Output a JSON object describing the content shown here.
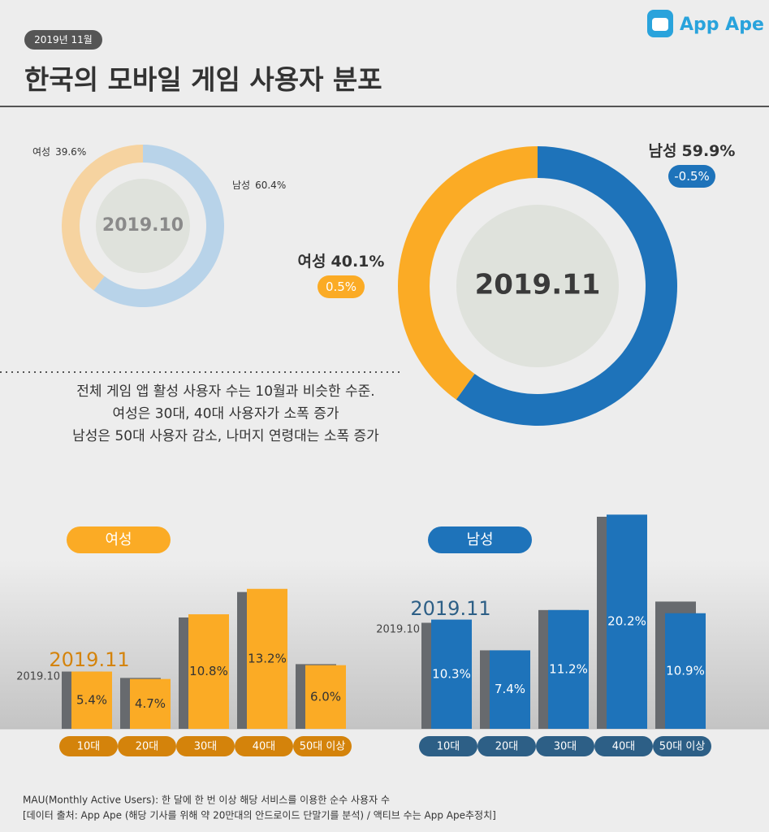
{
  "header": {
    "date": "2019년 11월",
    "title": "한국의 모바일 게임 사용자 분포",
    "logo": "App Ape"
  },
  "chart_data": [
    {
      "type": "donut",
      "title": "2019.10",
      "categories": [
        "여성",
        "남성"
      ],
      "values": [
        39.6,
        60.4
      ],
      "value_labels": [
        "39.6%",
        "60.4%"
      ],
      "colors": [
        "#f6d3a0",
        "#b8d3e9"
      ]
    },
    {
      "type": "donut",
      "title": "2019.11",
      "categories": [
        "여성",
        "남성"
      ],
      "values": [
        40.1,
        59.9
      ],
      "value_labels": [
        "40.1%",
        "59.9%"
      ],
      "annotations": [
        "0.5%",
        "-0.5%"
      ],
      "colors": [
        "#fbab25",
        "#1e73ba"
      ]
    },
    {
      "type": "bar",
      "title": "여성",
      "categories": [
        "10대",
        "20대",
        "30대",
        "40대",
        "50대 이상"
      ],
      "series": [
        {
          "name": "2019.10",
          "color": "#676a6e",
          "values": [
            5.4,
            4.8,
            10.5,
            12.9,
            6.1
          ]
        },
        {
          "name": "2019.11",
          "color": "#fbab25",
          "values": [
            5.4,
            4.7,
            10.8,
            13.2,
            6.0
          ],
          "value_labels": [
            "5.4%",
            "4.7%",
            "10.8%",
            "13.2%",
            "6.0%"
          ]
        }
      ]
    },
    {
      "type": "bar",
      "title": "남성",
      "categories": [
        "10대",
        "20대",
        "30대",
        "40대",
        "50대 이상"
      ],
      "series": [
        {
          "name": "2019.10",
          "color": "#676a6e",
          "values": [
            10.0,
            7.4,
            11.2,
            20.0,
            12.0
          ]
        },
        {
          "name": "2019.11",
          "color": "#1e73ba",
          "values": [
            10.3,
            7.4,
            11.2,
            20.2,
            10.9
          ],
          "value_labels": [
            "10.3%",
            "7.4%",
            "11.2%",
            "20.2%",
            "10.9%"
          ]
        }
      ]
    }
  ],
  "description": [
    "전체 게임 앱 활성 사용자 수는 10월과 비슷한 수준.",
    "여성은 30대, 40대 사용자가 소폭 증가",
    "남성은 50대 사용자 감소, 나머지 연령대는 소폭 증가"
  ],
  "footer": [
    "MAU(Monthly Active Users):  한 달에 한 번 이상 해당 서비스를 이용한 순수 사용자 수",
    "[데이터 출처: App Ape (해당 기사를 위해 약 20만대의 안드로이드 단말기를 분석) / 액티브 수는 App Ape추정치]"
  ]
}
